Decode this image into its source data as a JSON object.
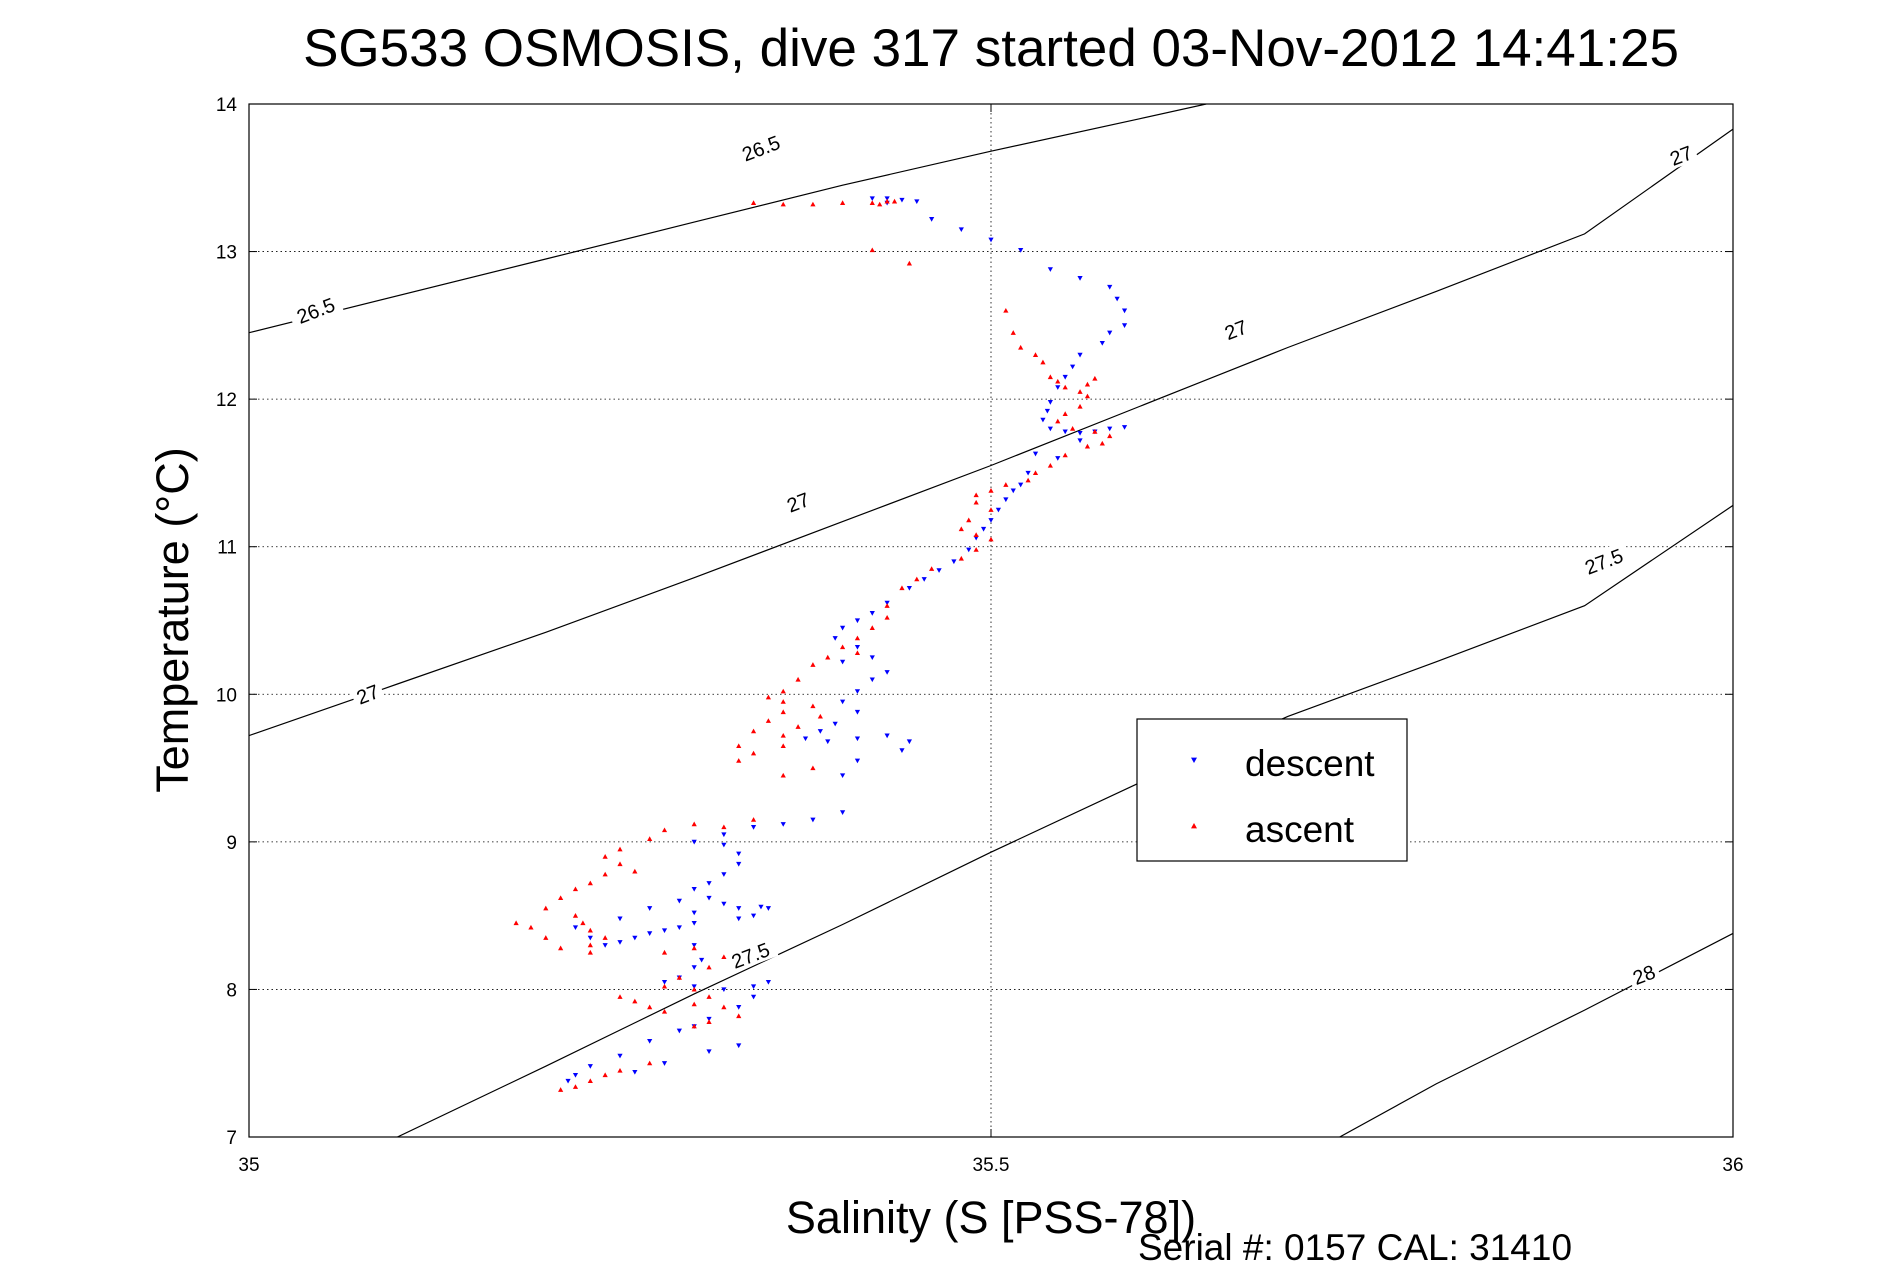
{
  "chart_data": {
    "type": "scatter",
    "title": "SG533 OSMOSIS, dive 317 started 03-Nov-2012 14:41:25",
    "xlabel": "Salinity (S [PSS-78])",
    "ylabel": "Temperature (°C)",
    "footer": "Serial #: 0157  CAL: 31410",
    "xlim": [
      35,
      36
    ],
    "ylim": [
      7,
      14
    ],
    "xticks": [
      35,
      35.5,
      36
    ],
    "xtick_labels": [
      "35",
      "35.5",
      "36"
    ],
    "yticks": [
      7,
      8,
      9,
      10,
      11,
      12,
      13,
      14
    ],
    "ytick_labels": [
      "7",
      "8",
      "9",
      "10",
      "11",
      "12",
      "13",
      "14"
    ],
    "grid": "dotted",
    "legend": {
      "position": "inside-right",
      "entries": [
        {
          "label": "descent",
          "color": "#0000ff",
          "marker": "triangle-down"
        },
        {
          "label": "ascent",
          "color": "#ff0000",
          "marker": "triangle-up"
        }
      ]
    },
    "density_contours": [
      {
        "level": "26.5",
        "points": [
          [
            35.0,
            12.45
          ],
          [
            35.2,
            12.95
          ],
          [
            35.3,
            13.2
          ],
          [
            35.4,
            13.45
          ],
          [
            35.5,
            13.68
          ],
          [
            35.6,
            13.9
          ],
          [
            35.645,
            14.0
          ]
        ],
        "labels": [
          {
            "text": "26.5",
            "x": 35.045,
            "y": 12.6,
            "angle": -21
          },
          {
            "text": "26.5",
            "x": 35.345,
            "y": 13.7,
            "angle": -21
          }
        ]
      },
      {
        "level": "27",
        "points": [
          [
            35.0,
            9.72
          ],
          [
            35.1,
            10.07
          ],
          [
            35.2,
            10.42
          ],
          [
            35.3,
            10.79
          ],
          [
            35.4,
            11.17
          ],
          [
            35.5,
            11.55
          ],
          [
            35.6,
            11.95
          ],
          [
            35.7,
            12.35
          ],
          [
            35.8,
            12.73
          ],
          [
            35.9,
            13.12
          ],
          [
            36.0,
            13.83
          ]
        ],
        "labels": [
          {
            "text": "27",
            "x": 35.08,
            "y": 10.0,
            "angle": -21
          },
          {
            "text": "27",
            "x": 35.37,
            "y": 11.3,
            "angle": -21
          },
          {
            "text": "27",
            "x": 35.665,
            "y": 12.47,
            "angle": -21
          },
          {
            "text": "27",
            "x": 35.965,
            "y": 13.65,
            "angle": -21
          }
        ]
      },
      {
        "level": "27.5",
        "points": [
          [
            35.1,
            7.0
          ],
          [
            35.2,
            7.48
          ],
          [
            35.3,
            7.97
          ],
          [
            35.4,
            8.44
          ],
          [
            35.5,
            8.93
          ],
          [
            35.6,
            9.4
          ],
          [
            35.7,
            9.85
          ],
          [
            35.8,
            10.22
          ],
          [
            35.9,
            10.6
          ],
          [
            36.0,
            11.28
          ]
        ],
        "labels": [
          {
            "text": "27.5",
            "x": 35.338,
            "y": 8.23,
            "angle": -21
          },
          {
            "text": "27.5",
            "x": 35.913,
            "y": 10.9,
            "angle": -21
          }
        ]
      },
      {
        "level": "28",
        "points": [
          [
            35.735,
            7.0
          ],
          [
            35.8,
            7.36
          ],
          [
            35.9,
            7.86
          ],
          [
            36.0,
            8.38
          ]
        ],
        "labels": [
          {
            "text": "28",
            "x": 35.94,
            "y": 8.1,
            "angle": -21
          }
        ]
      }
    ],
    "series": [
      {
        "name": "descent",
        "color": "#0000ff",
        "marker": "triangle-down",
        "points": [
          [
            35.42,
            13.36
          ],
          [
            35.43,
            13.36
          ],
          [
            35.44,
            13.35
          ],
          [
            35.45,
            13.34
          ],
          [
            35.43,
            13.33
          ],
          [
            35.46,
            13.22
          ],
          [
            35.48,
            13.15
          ],
          [
            35.5,
            13.08
          ],
          [
            35.52,
            13.01
          ],
          [
            35.54,
            12.88
          ],
          [
            35.56,
            12.82
          ],
          [
            35.58,
            12.76
          ],
          [
            35.585,
            12.68
          ],
          [
            35.59,
            12.6
          ],
          [
            35.59,
            12.5
          ],
          [
            35.58,
            12.45
          ],
          [
            35.575,
            12.38
          ],
          [
            35.56,
            12.3
          ],
          [
            35.555,
            12.22
          ],
          [
            35.55,
            12.15
          ],
          [
            35.545,
            12.08
          ],
          [
            35.54,
            11.98
          ],
          [
            35.538,
            11.92
          ],
          [
            35.535,
            11.86
          ],
          [
            35.54,
            11.8
          ],
          [
            35.55,
            11.78
          ],
          [
            35.56,
            11.77
          ],
          [
            35.57,
            11.78
          ],
          [
            35.58,
            11.8
          ],
          [
            35.59,
            11.81
          ],
          [
            35.56,
            11.72
          ],
          [
            35.545,
            11.6
          ],
          [
            35.53,
            11.63
          ],
          [
            35.525,
            11.5
          ],
          [
            35.52,
            11.42
          ],
          [
            35.515,
            11.38
          ],
          [
            35.51,
            11.32
          ],
          [
            35.505,
            11.25
          ],
          [
            35.5,
            11.18
          ],
          [
            35.495,
            11.12
          ],
          [
            35.49,
            11.06
          ],
          [
            35.485,
            10.98
          ],
          [
            35.475,
            10.9
          ],
          [
            35.465,
            10.84
          ],
          [
            35.455,
            10.78
          ],
          [
            35.445,
            10.72
          ],
          [
            35.43,
            10.62
          ],
          [
            35.42,
            10.55
          ],
          [
            35.41,
            10.5
          ],
          [
            35.4,
            10.45
          ],
          [
            35.395,
            10.38
          ],
          [
            35.41,
            10.32
          ],
          [
            35.42,
            10.25
          ],
          [
            35.4,
            10.22
          ],
          [
            35.43,
            10.15
          ],
          [
            35.42,
            10.1
          ],
          [
            35.41,
            10.02
          ],
          [
            35.4,
            9.95
          ],
          [
            35.41,
            9.88
          ],
          [
            35.395,
            9.8
          ],
          [
            35.385,
            9.75
          ],
          [
            35.375,
            9.7
          ],
          [
            35.39,
            9.68
          ],
          [
            35.41,
            9.7
          ],
          [
            35.43,
            9.72
          ],
          [
            35.445,
            9.68
          ],
          [
            35.44,
            9.62
          ],
          [
            35.41,
            9.55
          ],
          [
            35.4,
            9.45
          ],
          [
            35.4,
            9.2
          ],
          [
            35.38,
            9.15
          ],
          [
            35.36,
            9.12
          ],
          [
            35.34,
            9.1
          ],
          [
            35.32,
            9.05
          ],
          [
            35.3,
            9.0
          ],
          [
            35.32,
            8.98
          ],
          [
            35.33,
            8.92
          ],
          [
            35.33,
            8.85
          ],
          [
            35.32,
            8.78
          ],
          [
            35.31,
            8.72
          ],
          [
            35.3,
            8.68
          ],
          [
            35.31,
            8.62
          ],
          [
            35.32,
            8.58
          ],
          [
            35.33,
            8.55
          ],
          [
            35.345,
            8.56
          ],
          [
            35.35,
            8.55
          ],
          [
            35.34,
            8.5
          ],
          [
            35.33,
            8.48
          ],
          [
            35.3,
            8.45
          ],
          [
            35.29,
            8.42
          ],
          [
            35.28,
            8.4
          ],
          [
            35.27,
            8.38
          ],
          [
            35.26,
            8.35
          ],
          [
            35.25,
            8.32
          ],
          [
            35.24,
            8.3
          ],
          [
            35.23,
            8.35
          ],
          [
            35.22,
            8.42
          ],
          [
            35.25,
            8.48
          ],
          [
            35.27,
            8.55
          ],
          [
            35.29,
            8.6
          ],
          [
            35.3,
            8.52
          ],
          [
            35.3,
            8.3
          ],
          [
            35.305,
            8.2
          ],
          [
            35.3,
            8.15
          ],
          [
            35.29,
            8.08
          ],
          [
            35.28,
            8.05
          ],
          [
            35.3,
            8.02
          ],
          [
            35.32,
            8.0
          ],
          [
            35.34,
            8.02
          ],
          [
            35.35,
            8.05
          ],
          [
            35.34,
            7.95
          ],
          [
            35.33,
            7.88
          ],
          [
            35.31,
            7.8
          ],
          [
            35.3,
            7.75
          ],
          [
            35.29,
            7.72
          ],
          [
            35.27,
            7.65
          ],
          [
            35.25,
            7.55
          ],
          [
            35.23,
            7.48
          ],
          [
            35.22,
            7.42
          ],
          [
            35.215,
            7.38
          ],
          [
            35.26,
            7.44
          ],
          [
            35.28,
            7.5
          ],
          [
            35.31,
            7.58
          ],
          [
            35.33,
            7.62
          ]
        ]
      },
      {
        "name": "ascent",
        "color": "#ff0000",
        "marker": "triangle-up",
        "points": [
          [
            35.34,
            13.33
          ],
          [
            35.36,
            13.32
          ],
          [
            35.38,
            13.32
          ],
          [
            35.4,
            13.33
          ],
          [
            35.42,
            13.33
          ],
          [
            35.43,
            13.34
          ],
          [
            35.425,
            13.32
          ],
          [
            35.435,
            13.34
          ],
          [
            35.42,
            13.01
          ],
          [
            35.445,
            12.92
          ],
          [
            35.51,
            12.6
          ],
          [
            35.515,
            12.45
          ],
          [
            35.52,
            12.35
          ],
          [
            35.53,
            12.3
          ],
          [
            35.535,
            12.25
          ],
          [
            35.54,
            12.15
          ],
          [
            35.545,
            12.12
          ],
          [
            35.55,
            12.08
          ],
          [
            35.56,
            12.05
          ],
          [
            35.565,
            12.1
          ],
          [
            35.57,
            12.14
          ],
          [
            35.565,
            12.02
          ],
          [
            35.56,
            11.95
          ],
          [
            35.55,
            11.9
          ],
          [
            35.545,
            11.85
          ],
          [
            35.555,
            11.8
          ],
          [
            35.57,
            11.78
          ],
          [
            35.58,
            11.75
          ],
          [
            35.575,
            11.7
          ],
          [
            35.565,
            11.68
          ],
          [
            35.55,
            11.62
          ],
          [
            35.54,
            11.55
          ],
          [
            35.53,
            11.5
          ],
          [
            35.525,
            11.45
          ],
          [
            35.51,
            11.42
          ],
          [
            35.5,
            11.38
          ],
          [
            35.49,
            11.35
          ],
          [
            35.49,
            11.3
          ],
          [
            35.5,
            11.25
          ],
          [
            35.485,
            11.18
          ],
          [
            35.48,
            11.12
          ],
          [
            35.49,
            11.08
          ],
          [
            35.5,
            11.05
          ],
          [
            35.49,
            10.98
          ],
          [
            35.48,
            10.92
          ],
          [
            35.46,
            10.85
          ],
          [
            35.45,
            10.78
          ],
          [
            35.44,
            10.72
          ],
          [
            35.43,
            10.6
          ],
          [
            35.43,
            10.52
          ],
          [
            35.42,
            10.45
          ],
          [
            35.41,
            10.38
          ],
          [
            35.4,
            10.32
          ],
          [
            35.41,
            10.28
          ],
          [
            35.39,
            10.25
          ],
          [
            35.38,
            10.2
          ],
          [
            35.37,
            10.1
          ],
          [
            35.36,
            10.02
          ],
          [
            35.35,
            9.98
          ],
          [
            35.36,
            9.95
          ],
          [
            35.38,
            9.92
          ],
          [
            35.385,
            9.85
          ],
          [
            35.37,
            9.78
          ],
          [
            35.36,
            9.72
          ],
          [
            35.36,
            9.65
          ],
          [
            35.34,
            9.6
          ],
          [
            35.33,
            9.55
          ],
          [
            35.33,
            9.65
          ],
          [
            35.34,
            9.75
          ],
          [
            35.35,
            9.82
          ],
          [
            35.36,
            9.88
          ],
          [
            35.38,
            9.5
          ],
          [
            35.36,
            9.45
          ],
          [
            35.34,
            9.15
          ],
          [
            35.32,
            9.1
          ],
          [
            35.3,
            9.12
          ],
          [
            35.28,
            9.08
          ],
          [
            35.27,
            9.02
          ],
          [
            35.25,
            8.95
          ],
          [
            35.24,
            8.9
          ],
          [
            35.25,
            8.85
          ],
          [
            35.26,
            8.8
          ],
          [
            35.24,
            8.78
          ],
          [
            35.23,
            8.72
          ],
          [
            35.22,
            8.68
          ],
          [
            35.21,
            8.62
          ],
          [
            35.2,
            8.55
          ],
          [
            35.22,
            8.5
          ],
          [
            35.225,
            8.45
          ],
          [
            35.23,
            8.4
          ],
          [
            35.24,
            8.35
          ],
          [
            35.23,
            8.3
          ],
          [
            35.21,
            8.28
          ],
          [
            35.2,
            8.35
          ],
          [
            35.19,
            8.42
          ],
          [
            35.18,
            8.45
          ],
          [
            35.23,
            8.25
          ],
          [
            35.28,
            8.25
          ],
          [
            35.3,
            8.28
          ],
          [
            35.32,
            8.22
          ],
          [
            35.31,
            8.15
          ],
          [
            35.29,
            8.08
          ],
          [
            35.28,
            8.02
          ],
          [
            35.3,
            8.0
          ],
          [
            35.31,
            7.95
          ],
          [
            35.3,
            7.9
          ],
          [
            35.28,
            7.85
          ],
          [
            35.27,
            7.88
          ],
          [
            35.26,
            7.92
          ],
          [
            35.25,
            7.95
          ],
          [
            35.32,
            7.88
          ],
          [
            35.33,
            7.82
          ],
          [
            35.31,
            7.78
          ],
          [
            35.3,
            7.75
          ],
          [
            35.27,
            7.5
          ],
          [
            35.25,
            7.45
          ],
          [
            35.24,
            7.42
          ],
          [
            35.23,
            7.38
          ],
          [
            35.22,
            7.34
          ],
          [
            35.21,
            7.32
          ]
        ]
      }
    ]
  }
}
